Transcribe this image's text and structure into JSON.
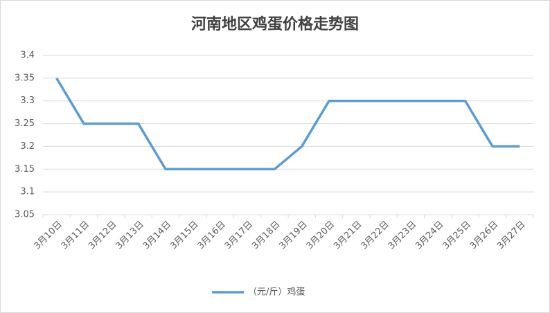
{
  "chart_data": {
    "type": "line",
    "title": "河南地区鸡蛋价格走势图",
    "categories": [
      "3月10日",
      "3月11日",
      "3月12日",
      "3月13日",
      "3月14日",
      "3月15日",
      "3月16日",
      "3月17日",
      "3月18日",
      "3月19日",
      "3月20日",
      "3月21日",
      "3月22日",
      "3月23日",
      "3月24日",
      "3月25日",
      "3月26日",
      "3月27日"
    ],
    "series": [
      {
        "name": "（元/斤）鸡蛋",
        "color": "#5b9bd5",
        "values": [
          3.35,
          3.25,
          3.25,
          3.25,
          3.15,
          3.15,
          3.15,
          3.15,
          3.15,
          3.2,
          3.3,
          3.3,
          3.3,
          3.3,
          3.3,
          3.3,
          3.2,
          3.2
        ]
      }
    ],
    "ylim": [
      3.05,
      3.4
    ],
    "yticks": [
      3.05,
      3.1,
      3.15,
      3.2,
      3.25,
      3.3,
      3.35,
      3.4
    ],
    "grid": true,
    "legend": "bottom"
  }
}
